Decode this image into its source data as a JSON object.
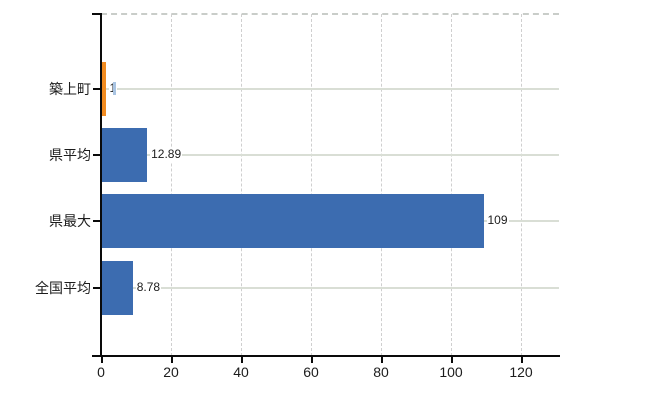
{
  "chart_data": {
    "type": "bar",
    "orientation": "horizontal",
    "title": "",
    "xlabel": "",
    "ylabel": "",
    "categories": [
      "築上町",
      "県平均",
      "県最大",
      "全国平均"
    ],
    "values": [
      1,
      12.89,
      109,
      8.78
    ],
    "value_labels": [
      "1",
      "12.89",
      "109",
      "8.78"
    ],
    "bar_colors": [
      "#f18b20",
      "#3c6cb0",
      "#3c6cb0",
      "#3c6cb0"
    ],
    "x_ticks": [
      0,
      20,
      40,
      60,
      80,
      100,
      120
    ],
    "x_tick_labels": [
      "0",
      "20",
      "40",
      "60",
      "80",
      "100",
      "120"
    ],
    "xlim": [
      0,
      130.8
    ],
    "legend": "none",
    "grid": {
      "vertical": "dashed",
      "horizontal": "solid"
    },
    "cursor_artifact": {
      "row": 0,
      "color": "#a9c4e2"
    }
  },
  "colors": {
    "background": "#ffffff",
    "axis": "#0a0a0a",
    "grid_vertical": "#cfcfcf",
    "grid_horizontal": "#d9ded5",
    "top_border": "#c9cdc9",
    "text": "#1c1c1c",
    "bar_blue": "#3c6cb0",
    "bar_orange": "#f18b20"
  }
}
